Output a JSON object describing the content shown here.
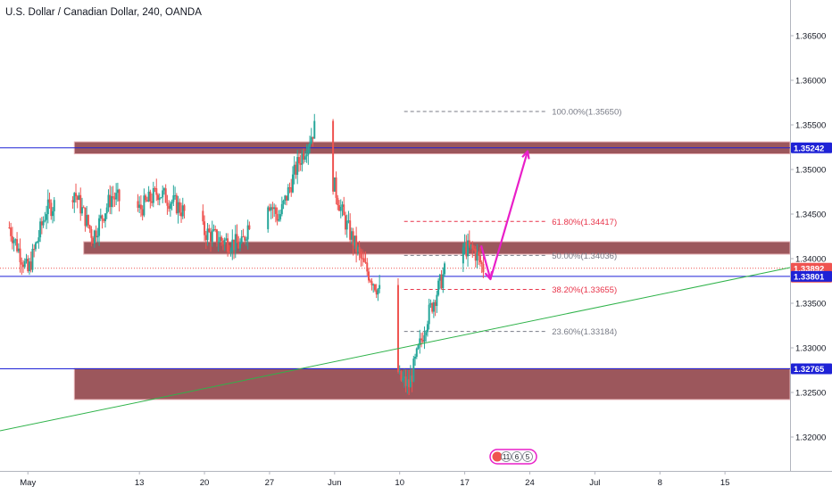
{
  "chart_data": {
    "type": "candlestick",
    "title": "U.S. Dollar / Canadian Dollar, 240, OANDA",
    "ylim": [
      1.3185,
      1.3675
    ],
    "y_ticks": [
      "1.36500",
      "1.36000",
      "1.35500",
      "1.35000",
      "1.34500",
      "1.34000",
      "1.33500",
      "1.33000",
      "1.32500",
      "1.32000"
    ],
    "y_tick_values": [
      1.365,
      1.36,
      1.355,
      1.35,
      1.345,
      1.34,
      1.335,
      1.33,
      1.325,
      1.32
    ],
    "x_ticks": [
      "May",
      "13",
      "20",
      "27",
      "Jun",
      "10",
      "17",
      "24",
      "Jul",
      "8",
      "15"
    ],
    "x_tick_dates": [
      "2019-05-01",
      "2019-05-13",
      "2019-05-20",
      "2019-05-27",
      "2019-06-03",
      "2019-06-10",
      "2019-06-17",
      "2019-06-24",
      "2019-07-01",
      "2019-07-08",
      "2019-07-15"
    ],
    "x_domain": [
      "2019-04-28",
      "2019-07-22"
    ],
    "colors": {
      "up": "#26a69a",
      "down": "#ef5350",
      "zone_fill": "#8b3a3f",
      "zone_border": "#e8b4b8",
      "horizontal_line": "#1e22d6",
      "trendline": "#2fb34a",
      "arrow": "#e91ec8",
      "price_line": "#ef5350",
      "fib_gray": "#787b86",
      "fib_red": "#e8344a",
      "axis_line": "#b2b5be",
      "countdown_bg": "#ef5350"
    },
    "price_labels": [
      {
        "text": "1.35242",
        "value": 1.35242,
        "bg": "#1e22d6"
      },
      {
        "text": "1.33892",
        "value": 1.33892,
        "bg": "#ef5350",
        "subtext": "02:08:53"
      },
      {
        "text": "1.33801",
        "value": 1.33801,
        "bg": "#1e22d6"
      },
      {
        "text": "1.32765",
        "value": 1.32765,
        "bg": "#1e22d6"
      }
    ],
    "horizontal_lines": [
      1.35242,
      1.33801,
      1.32765
    ],
    "current_price": 1.33892,
    "zones": [
      {
        "name": "resistance",
        "from": "2019-05-06",
        "to": "2019-07-22",
        "top": 1.3531,
        "bottom": 1.35175
      },
      {
        "name": "middle",
        "from": "2019-05-07",
        "to": "2019-07-22",
        "top": 1.3419,
        "bottom": 1.3405
      },
      {
        "name": "support",
        "from": "2019-05-06",
        "to": "2019-07-22",
        "top": 1.3277,
        "bottom": 1.3242
      }
    ],
    "fib_levels": [
      {
        "label": "100.00%(1.35650)",
        "value": 1.3565,
        "color": "#787b86"
      },
      {
        "label": "61.80%(1.34417)",
        "value": 1.34417,
        "color": "#e8344a"
      },
      {
        "label": "50.00%(1.34036)",
        "value": 1.34036,
        "color": "#787b86"
      },
      {
        "label": "38.20%(1.33655)",
        "value": 1.33655,
        "color": "#e8344a"
      },
      {
        "label": "23.60%(1.33184)",
        "value": 1.33184,
        "color": "#787b86"
      }
    ],
    "fib_range": [
      "2019-06-10",
      "2019-06-21"
    ],
    "trendline": {
      "from": [
        "2019-04-28",
        1.3207
      ],
      "to": [
        "2019-07-22",
        1.339
      ]
    },
    "arrow_path": [
      [
        "2019-06-18",
        1.34147
      ],
      [
        "2019-06-19",
        1.3377
      ],
      [
        "2019-06-23",
        1.35205
      ]
    ],
    "candles_summary": [
      {
        "date": "2019-04-29",
        "close": 1.3435
      },
      {
        "date": "2019-05-01",
        "close": 1.3385
      },
      {
        "date": "2019-05-03",
        "close": 1.3455
      },
      {
        "date": "2019-05-06",
        "close": 1.3475
      },
      {
        "date": "2019-05-08",
        "close": 1.3425
      },
      {
        "date": "2019-05-10",
        "close": 1.347
      },
      {
        "date": "2019-05-13",
        "close": 1.3455
      },
      {
        "date": "2019-05-15",
        "close": 1.3475
      },
      {
        "date": "2019-05-17",
        "close": 1.346
      },
      {
        "date": "2019-05-20",
        "close": 1.343
      },
      {
        "date": "2019-05-22",
        "close": 1.342
      },
      {
        "date": "2019-05-24",
        "close": 1.3415
      },
      {
        "date": "2019-05-26",
        "close": 1.348
      },
      {
        "date": "2019-05-28",
        "close": 1.3445
      },
      {
        "date": "2019-05-30",
        "close": 1.3505
      },
      {
        "date": "2019-06-01",
        "close": 1.355
      },
      {
        "date": "2019-06-02",
        "close": 1.3515
      },
      {
        "date": "2019-06-04",
        "close": 1.3445
      },
      {
        "date": "2019-06-06",
        "close": 1.3395
      },
      {
        "date": "2019-06-08",
        "close": 1.336
      },
      {
        "date": "2019-06-10",
        "close": 1.3265
      },
      {
        "date": "2019-06-11",
        "close": 1.3258
      },
      {
        "date": "2019-06-13",
        "close": 1.3335
      },
      {
        "date": "2019-06-15",
        "close": 1.339
      },
      {
        "date": "2019-06-16",
        "close": 1.3415
      },
      {
        "date": "2019-06-18",
        "close": 1.3409
      },
      {
        "date": "2019-06-19",
        "close": 1.33892
      }
    ],
    "bottom_badges": [
      "11",
      "6",
      "5"
    ],
    "grid": false
  }
}
